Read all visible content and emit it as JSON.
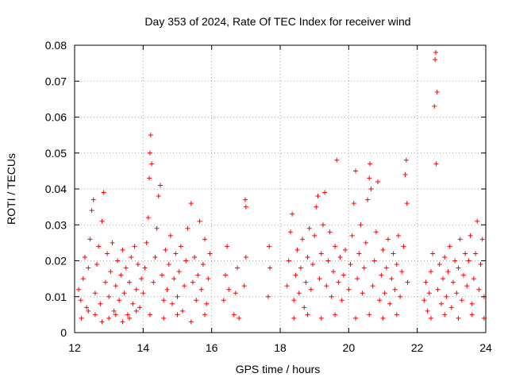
{
  "chart_data": {
    "type": "scatter",
    "title": "Day 353 of 2024, Rate Of TEC Index for receiver wind",
    "xlabel": "GPS time / hours",
    "ylabel": "ROTI / TECUs",
    "xlim": [
      12,
      24
    ],
    "ylim": [
      0,
      0.08
    ],
    "x_ticks": [
      12,
      14,
      16,
      18,
      20,
      22,
      24
    ],
    "x_tick_labels": [
      "12",
      "14",
      "16",
      "18",
      "20",
      "22",
      "24"
    ],
    "y_ticks": [
      0,
      0.01,
      0.02,
      0.03,
      0.04,
      0.05,
      0.06,
      0.07,
      0.08
    ],
    "y_tick_labels": [
      "0",
      "0.01",
      "0.02",
      "0.03",
      "0.04",
      "0.05",
      "0.06",
      "0.07",
      "0.08"
    ],
    "grid": true,
    "marker": "+",
    "color": "#ff0000",
    "series": [
      {
        "name": "ROTI",
        "points": [
          [
            12.12,
            0.012
          ],
          [
            12.18,
            0.009
          ],
          [
            12.25,
            0.015
          ],
          [
            12.3,
            0.021
          ],
          [
            12.35,
            0.007
          ],
          [
            12.4,
            0.018
          ],
          [
            12.45,
            0.026
          ],
          [
            12.5,
            0.034
          ],
          [
            12.55,
            0.037
          ],
          [
            12.6,
            0.011
          ],
          [
            12.65,
            0.019
          ],
          [
            12.7,
            0.024
          ],
          [
            12.75,
            0.008
          ],
          [
            12.8,
            0.031
          ],
          [
            12.85,
            0.039
          ],
          [
            12.9,
            0.014
          ],
          [
            12.95,
            0.022
          ],
          [
            13.0,
            0.01
          ],
          [
            13.05,
            0.017
          ],
          [
            13.1,
            0.025
          ],
          [
            13.15,
            0.006
          ],
          [
            13.2,
            0.013
          ],
          [
            13.25,
            0.02
          ],
          [
            13.3,
            0.009
          ],
          [
            13.35,
            0.016
          ],
          [
            13.4,
            0.023
          ],
          [
            13.45,
            0.011
          ],
          [
            13.5,
            0.018
          ],
          [
            13.55,
            0.005
          ],
          [
            13.6,
            0.014
          ],
          [
            13.65,
            0.021
          ],
          [
            13.7,
            0.008
          ],
          [
            13.75,
            0.024
          ],
          [
            13.8,
            0.012
          ],
          [
            13.85,
            0.019
          ],
          [
            13.9,
            0.007
          ],
          [
            13.95,
            0.015
          ],
          [
            12.2,
            0.004
          ],
          [
            12.4,
            0.006
          ],
          [
            12.6,
            0.005
          ],
          [
            12.8,
            0.003
          ],
          [
            13.0,
            0.004
          ],
          [
            13.2,
            0.005
          ],
          [
            13.4,
            0.003
          ],
          [
            13.6,
            0.004
          ],
          [
            13.8,
            0.006
          ],
          [
            14.0,
            0.011
          ],
          [
            14.05,
            0.018
          ],
          [
            14.1,
            0.025
          ],
          [
            14.15,
            0.032
          ],
          [
            14.18,
            0.043
          ],
          [
            14.2,
            0.05
          ],
          [
            14.22,
            0.055
          ],
          [
            14.25,
            0.047
          ],
          [
            14.3,
            0.014
          ],
          [
            14.35,
            0.021
          ],
          [
            14.4,
            0.029
          ],
          [
            14.45,
            0.038
          ],
          [
            14.5,
            0.041
          ],
          [
            14.55,
            0.016
          ],
          [
            14.6,
            0.009
          ],
          [
            14.65,
            0.023
          ],
          [
            14.7,
            0.012
          ],
          [
            14.75,
            0.019
          ],
          [
            14.8,
            0.027
          ],
          [
            14.85,
            0.008
          ],
          [
            14.9,
            0.015
          ],
          [
            14.95,
            0.022
          ],
          [
            15.0,
            0.01
          ],
          [
            15.05,
            0.017
          ],
          [
            15.1,
            0.024
          ],
          [
            15.15,
            0.006
          ],
          [
            15.2,
            0.013
          ],
          [
            15.25,
            0.02
          ],
          [
            15.3,
            0.029
          ],
          [
            15.4,
            0.036
          ],
          [
            15.45,
            0.014
          ],
          [
            15.5,
            0.021
          ],
          [
            15.55,
            0.009
          ],
          [
            15.6,
            0.016
          ],
          [
            15.65,
            0.031
          ],
          [
            15.7,
            0.012
          ],
          [
            15.75,
            0.019
          ],
          [
            15.8,
            0.026
          ],
          [
            15.85,
            0.008
          ],
          [
            15.9,
            0.015
          ],
          [
            15.95,
            0.022
          ],
          [
            14.2,
            0.005
          ],
          [
            14.6,
            0.004
          ],
          [
            15.0,
            0.005
          ],
          [
            15.4,
            0.003
          ],
          [
            15.8,
            0.005
          ],
          [
            16.35,
            0.009
          ],
          [
            16.4,
            0.016
          ],
          [
            16.45,
            0.024
          ],
          [
            16.5,
            0.012
          ],
          [
            16.65,
            0.005
          ],
          [
            16.7,
            0.011
          ],
          [
            16.75,
            0.018
          ],
          [
            16.8,
            0.004
          ],
          [
            16.95,
            0.013
          ],
          [
            17.0,
            0.021
          ],
          [
            16.98,
            0.037
          ],
          [
            17.0,
            0.035
          ],
          [
            17.65,
            0.01
          ],
          [
            17.7,
            0.018
          ],
          [
            17.68,
            0.024
          ],
          [
            18.2,
            0.013
          ],
          [
            18.25,
            0.02
          ],
          [
            18.3,
            0.028
          ],
          [
            18.35,
            0.033
          ],
          [
            18.4,
            0.009
          ],
          [
            18.45,
            0.016
          ],
          [
            18.5,
            0.023
          ],
          [
            18.55,
            0.011
          ],
          [
            18.6,
            0.018
          ],
          [
            18.65,
            0.026
          ],
          [
            18.7,
            0.007
          ],
          [
            18.75,
            0.014
          ],
          [
            18.8,
            0.021
          ],
          [
            18.85,
            0.029
          ],
          [
            18.9,
            0.012
          ],
          [
            18.95,
            0.019
          ],
          [
            19.0,
            0.027
          ],
          [
            19.05,
            0.035
          ],
          [
            19.1,
            0.038
          ],
          [
            19.15,
            0.015
          ],
          [
            19.2,
            0.022
          ],
          [
            19.25,
            0.03
          ],
          [
            19.3,
            0.039
          ],
          [
            19.35,
            0.013
          ],
          [
            19.4,
            0.02
          ],
          [
            19.45,
            0.028
          ],
          [
            19.5,
            0.01
          ],
          [
            19.55,
            0.017
          ],
          [
            19.6,
            0.024
          ],
          [
            19.65,
            0.048
          ],
          [
            19.7,
            0.014
          ],
          [
            19.75,
            0.021
          ],
          [
            19.8,
            0.009
          ],
          [
            19.85,
            0.016
          ],
          [
            19.9,
            0.023
          ],
          [
            18.4,
            0.004
          ],
          [
            18.8,
            0.005
          ],
          [
            19.2,
            0.004
          ],
          [
            19.6,
            0.005
          ],
          [
            20.0,
            0.012
          ],
          [
            20.05,
            0.019
          ],
          [
            20.1,
            0.027
          ],
          [
            20.15,
            0.036
          ],
          [
            20.2,
            0.045
          ],
          [
            20.25,
            0.015
          ],
          [
            20.3,
            0.022
          ],
          [
            20.35,
            0.03
          ],
          [
            20.4,
            0.011
          ],
          [
            20.45,
            0.018
          ],
          [
            20.5,
            0.025
          ],
          [
            20.55,
            0.037
          ],
          [
            20.6,
            0.043
          ],
          [
            20.62,
            0.047
          ],
          [
            20.65,
            0.04
          ],
          [
            20.7,
            0.013
          ],
          [
            20.75,
            0.02
          ],
          [
            20.8,
            0.028
          ],
          [
            20.85,
            0.042
          ],
          [
            20.9,
            0.009
          ],
          [
            20.95,
            0.016
          ],
          [
            21.0,
            0.023
          ],
          [
            21.05,
            0.011
          ],
          [
            21.1,
            0.018
          ],
          [
            21.15,
            0.026
          ],
          [
            21.2,
            0.008
          ],
          [
            21.25,
            0.015
          ],
          [
            21.3,
            0.022
          ],
          [
            21.35,
            0.012
          ],
          [
            21.4,
            0.019
          ],
          [
            21.45,
            0.027
          ],
          [
            21.5,
            0.01
          ],
          [
            21.55,
            0.017
          ],
          [
            21.6,
            0.024
          ],
          [
            21.65,
            0.044
          ],
          [
            21.68,
            0.048
          ],
          [
            21.7,
            0.036
          ],
          [
            21.72,
            0.014
          ],
          [
            20.2,
            0.004
          ],
          [
            20.6,
            0.005
          ],
          [
            21.0,
            0.004
          ],
          [
            21.4,
            0.005
          ],
          [
            22.2,
            0.009
          ],
          [
            22.25,
            0.014
          ],
          [
            22.3,
            0.006
          ],
          [
            22.35,
            0.011
          ],
          [
            22.4,
            0.017
          ],
          [
            22.45,
            0.022
          ],
          [
            22.5,
            0.063
          ],
          [
            22.52,
            0.076
          ],
          [
            22.54,
            0.078
          ],
          [
            22.55,
            0.047
          ],
          [
            22.58,
            0.067
          ],
          [
            22.6,
            0.012
          ],
          [
            22.65,
            0.019
          ],
          [
            22.7,
            0.008
          ],
          [
            22.75,
            0.015
          ],
          [
            22.8,
            0.021
          ],
          [
            22.85,
            0.01
          ],
          [
            22.9,
            0.017
          ],
          [
            22.95,
            0.024
          ],
          [
            23.0,
            0.007
          ],
          [
            23.05,
            0.014
          ],
          [
            23.1,
            0.02
          ],
          [
            23.15,
            0.011
          ],
          [
            23.2,
            0.018
          ],
          [
            23.25,
            0.026
          ],
          [
            23.3,
            0.009
          ],
          [
            23.35,
            0.016
          ],
          [
            23.4,
            0.022
          ],
          [
            23.45,
            0.013
          ],
          [
            23.5,
            0.02
          ],
          [
            23.55,
            0.027
          ],
          [
            23.6,
            0.008
          ],
          [
            23.65,
            0.015
          ],
          [
            23.7,
            0.022
          ],
          [
            23.75,
            0.031
          ],
          [
            23.8,
            0.012
          ],
          [
            23.85,
            0.019
          ],
          [
            23.9,
            0.026
          ],
          [
            23.95,
            0.01
          ],
          [
            22.4,
            0.004
          ],
          [
            22.8,
            0.005
          ],
          [
            23.2,
            0.004
          ],
          [
            23.6,
            0.005
          ],
          [
            23.95,
            0.004
          ]
        ]
      }
    ]
  }
}
